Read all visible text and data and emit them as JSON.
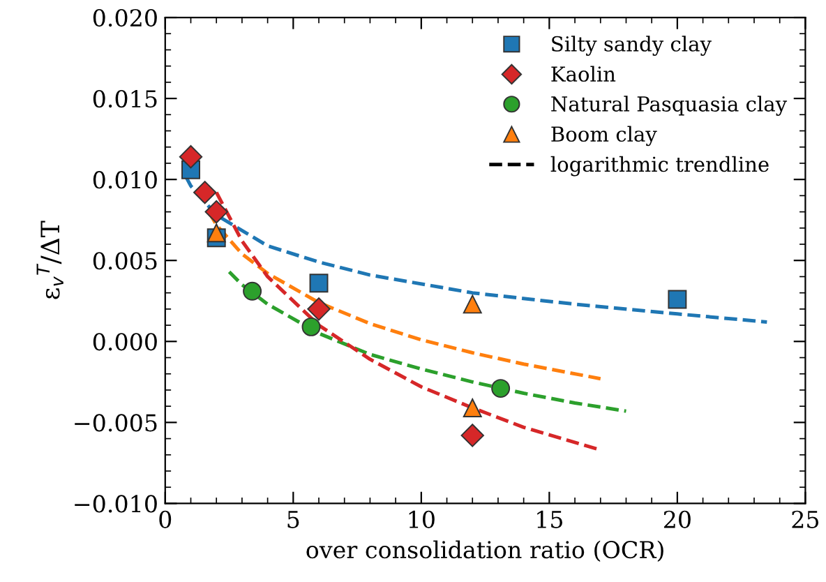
{
  "chart_data": {
    "type": "scatter",
    "xlabel": "over consolidation ratio (OCR)",
    "ylabel": "ε$_{v}$$^{T}$/ΔT",
    "xlim": [
      0,
      25
    ],
    "xticks": [
      0,
      5,
      10,
      15,
      20,
      25
    ],
    "ylim": [
      -0.01,
      0.02
    ],
    "yticks": [
      {
        "value": -0.01,
        "label": "−0.010"
      },
      {
        "value": -0.005,
        "label": "−0.005"
      },
      {
        "value": 0,
        "label": "0.000"
      },
      {
        "value": 0.005,
        "label": "0.005"
      },
      {
        "value": 0.01,
        "label": "0.010"
      },
      {
        "value": 0.015,
        "label": "0.015"
      },
      {
        "value": 0.02,
        "label": "0.020"
      }
    ],
    "grid": false,
    "legend": "top right",
    "series": [
      {
        "name": "Silty sandy clay",
        "marker": "square",
        "color": "#1f77b4",
        "x": [
          1,
          2,
          6,
          20
        ],
        "values": [
          0.0106,
          0.0064,
          0.0036,
          0.0026
        ]
      },
      {
        "name": "Kaolin",
        "marker": "diamond",
        "color": "#d62728",
        "x": [
          1,
          1.55,
          2,
          6,
          12
        ],
        "values": [
          0.0114,
          0.0092,
          0.008,
          0.002,
          -0.0058
        ]
      },
      {
        "name": "Natural Pasquasia clay",
        "marker": "circle",
        "color": "#2ca02c",
        "x": [
          3.4,
          5.7,
          13.1
        ],
        "values": [
          0.0031,
          0.0009,
          -0.0029
        ]
      },
      {
        "name": "Boom clay",
        "marker": "triangle",
        "color": "#ff7f0e",
        "x": [
          2,
          12,
          12
        ],
        "values": [
          0.0067,
          0.0023,
          -0.0041
        ]
      },
      {
        "name": "logarithmic trendline",
        "type": "line",
        "line_style": "dashed",
        "color": "#000000"
      },
      {
        "type": "line",
        "line_style": "dashed",
        "color": "#1f77b4",
        "x": [
          0.8,
          1,
          2,
          4,
          6,
          8,
          12,
          16,
          20,
          23.5
        ],
        "values": [
          0.0102,
          0.0096,
          0.0078,
          0.0059,
          0.0049,
          0.0041,
          0.003,
          0.0023,
          0.0017,
          0.0012
        ]
      },
      {
        "type": "line",
        "line_style": "dashed",
        "color": "#ff7f0e",
        "x": [
          1.7,
          2,
          3,
          4,
          6,
          8,
          10,
          12,
          14,
          17
        ],
        "values": [
          0.008,
          0.0072,
          0.0054,
          0.0042,
          0.0024,
          0.0011,
          0.0001,
          -0.0007,
          -0.0014,
          -0.0023
        ]
      },
      {
        "type": "line",
        "line_style": "dashed",
        "color": "#2ca02c",
        "x": [
          2.5,
          3,
          4,
          6,
          8,
          10,
          12,
          14,
          16,
          18
        ],
        "values": [
          0.0043,
          0.0035,
          0.0023,
          0.0005,
          -0.0008,
          -0.0017,
          -0.0025,
          -0.0032,
          -0.0038,
          -0.0043
        ]
      },
      {
        "type": "line",
        "line_style": "dashed",
        "color": "#d62728",
        "x": [
          2,
          3,
          4,
          6,
          8,
          10,
          12,
          14,
          17
        ],
        "values": [
          0.0092,
          0.0062,
          0.004,
          0.001,
          -0.0011,
          -0.0028,
          -0.0041,
          -0.0053,
          -0.0067
        ]
      }
    ]
  }
}
